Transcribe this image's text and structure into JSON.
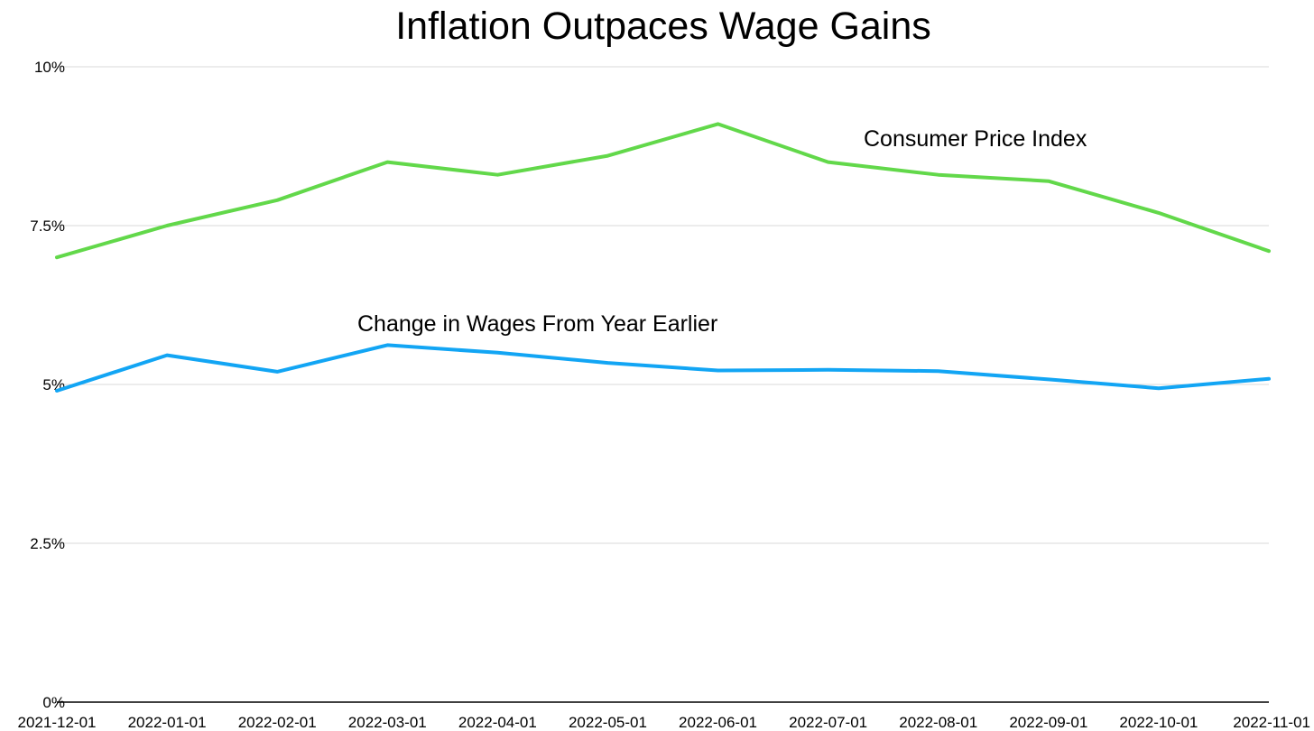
{
  "chart_data": {
    "type": "line",
    "title": "Inflation Outpaces Wage Gains",
    "xlabel": "",
    "ylabel": "",
    "x": [
      "2021-12-01",
      "2022-01-01",
      "2022-02-01",
      "2022-03-01",
      "2022-04-01",
      "2022-05-01",
      "2022-06-01",
      "2022-07-01",
      "2022-08-01",
      "2022-09-01",
      "2022-10-01",
      "2022-11-01"
    ],
    "ylim": [
      0,
      10
    ],
    "y_ticks": [
      0,
      2.5,
      5,
      7.5,
      10
    ],
    "y_tick_labels": [
      "0%",
      "2.5%",
      "5%",
      "7.5%",
      "10%"
    ],
    "grid": true,
    "legend": "none",
    "series": [
      {
        "name": "Consumer Price Index",
        "color": "#62d84a",
        "values": [
          7.0,
          7.5,
          7.9,
          8.5,
          8.3,
          8.6,
          9.1,
          8.5,
          8.3,
          8.2,
          7.7,
          7.1
        ]
      },
      {
        "name": "Change in Wages From Year Earlier",
        "color": "#12a5f4",
        "values": [
          4.9,
          5.46,
          5.2,
          5.62,
          5.5,
          5.34,
          5.22,
          5.23,
          5.21,
          5.08,
          4.94,
          5.09
        ]
      }
    ]
  }
}
